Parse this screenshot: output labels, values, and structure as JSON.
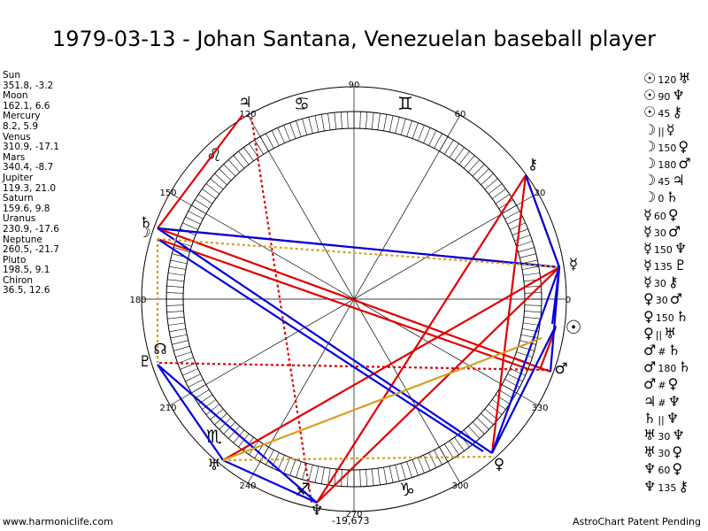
{
  "title": "1979-03-13 - Johan Santana, Venezuelan baseball player",
  "planets": [
    {
      "name": "Sun",
      "position": "351.8, -3.2",
      "glyph": "☉",
      "color": "#000000"
    },
    {
      "name": "Moon",
      "position": "162.1, 6.6",
      "glyph": "☽",
      "color": "#000000"
    },
    {
      "name": "Mercury",
      "position": "8.2, 5.9",
      "glyph": "☿",
      "color": "#000000"
    },
    {
      "name": "Venus",
      "position": "310.9, -17.1",
      "glyph": "♀",
      "color": "#000000"
    },
    {
      "name": "Mars",
      "position": "340.4, -8.7",
      "glyph": "♂",
      "color": "#000000"
    },
    {
      "name": "Jupiter",
      "position": "119.3, 21.0",
      "glyph": "♃",
      "color": "#000000"
    },
    {
      "name": "Saturn",
      "position": "159.6, 9.8",
      "glyph": "♄",
      "color": "#000000"
    },
    {
      "name": "Uranus",
      "position": "230.9, -17.6",
      "glyph": "♅",
      "color": "#000000"
    },
    {
      "name": "Neptune",
      "position": "260.5, -21.7",
      "glyph": "♆",
      "color": "#000000"
    },
    {
      "name": "Pluto",
      "position": "198.5, 9.1",
      "glyph": "♇",
      "color": "#000000"
    },
    {
      "name": "Chiron",
      "position": "36.5, 12.6",
      "glyph": "⚷",
      "color": "#000000"
    }
  ],
  "wheel_labels": {
    "deg_90": "90",
    "deg_60": "60",
    "deg_120": "120",
    "deg_150": "150",
    "deg_180": "180",
    "deg_210": "210",
    "deg_240": "240",
    "deg_270": "270",
    "deg_300": "300",
    "deg_330": "330",
    "deg_0": "0",
    "deg_30": "30"
  },
  "chart_glyphs": {
    "jupiter": "♃",
    "chiron": "⚷",
    "mercury": "☿",
    "sun": "☉",
    "mars": "♂",
    "venus": "♀",
    "neptune": "♆",
    "uranus": "♅",
    "pluto": "♇",
    "saturn": "♄",
    "moon": "☽",
    "node": "☊"
  },
  "signs": [
    {
      "name": "gemini",
      "glyph": "♊"
    },
    {
      "name": "cancer",
      "glyph": "♋"
    },
    {
      "name": "leo",
      "glyph": "♌"
    },
    {
      "name": "scorpio",
      "glyph": "♏"
    },
    {
      "name": "sagittarius",
      "glyph": "♐"
    },
    {
      "name": "capricorn",
      "glyph": "♑"
    }
  ],
  "aspects": [
    {
      "a": "☉",
      "n": "120",
      "b": "♅"
    },
    {
      "a": "☉",
      "n": "90",
      "b": "♆"
    },
    {
      "a": "☉",
      "n": "45",
      "b": "⚷"
    },
    {
      "a": "☽",
      "n": "||",
      "b": "☿"
    },
    {
      "a": "☽",
      "n": "150",
      "b": "♀"
    },
    {
      "a": "☽",
      "n": "180",
      "b": "♂"
    },
    {
      "a": "☽",
      "n": "45",
      "b": "♃"
    },
    {
      "a": "☽",
      "n": "0",
      "b": "♄"
    },
    {
      "a": "☿",
      "n": "60",
      "b": "♀"
    },
    {
      "a": "☿",
      "n": "30",
      "b": "♂"
    },
    {
      "a": "☿",
      "n": "150",
      "b": "♆"
    },
    {
      "a": "☿",
      "n": "135",
      "b": "♇"
    },
    {
      "a": "☿",
      "n": "30",
      "b": "⚷"
    },
    {
      "a": "♀",
      "n": "30",
      "b": "♂"
    },
    {
      "a": "♀",
      "n": "150",
      "b": "♄"
    },
    {
      "a": "♀",
      "n": "||",
      "b": "♅"
    },
    {
      "a": "♂",
      "n": "#",
      "b": "♄"
    },
    {
      "a": "♂",
      "n": "180",
      "b": "♄"
    },
    {
      "a": "♂",
      "n": "#",
      "b": "♀"
    },
    {
      "a": "♃",
      "n": "#",
      "b": "♆"
    },
    {
      "a": "♄",
      "n": "||",
      "b": "♆"
    },
    {
      "a": "♅",
      "n": "30",
      "b": "♆"
    },
    {
      "a": "♅",
      "n": "30",
      "b": "♀"
    },
    {
      "a": "♆",
      "n": "60",
      "b": "♀"
    },
    {
      "a": "♆",
      "n": "135",
      "b": "⚷"
    }
  ],
  "footer": {
    "left": "www.harmoniclife.com",
    "right": "AstroChart Patent Pending",
    "bottom_number": "-19,673"
  }
}
